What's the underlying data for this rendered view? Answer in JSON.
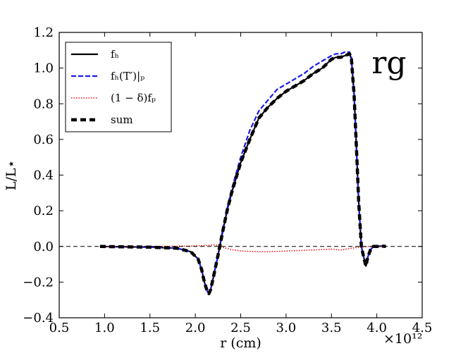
{
  "chart_data": {
    "type": "line",
    "xlabel": "r (cm)",
    "ylabel": "L/L⋆",
    "x_scale_label": "×10¹²",
    "panel_label": "rg",
    "xlim": [
      0.5,
      4.5
    ],
    "ylim": [
      -0.4,
      1.2
    ],
    "x_ticks": [
      0.5,
      1.0,
      1.5,
      2.0,
      2.5,
      3.0,
      3.5,
      4.0,
      4.5
    ],
    "y_ticks": [
      -0.4,
      -0.2,
      0.0,
      0.2,
      0.4,
      0.6,
      0.8,
      1.0,
      1.2
    ],
    "x_tick_labels": [
      "0.5",
      "1.0",
      "1.5",
      "2.0",
      "2.5",
      "3.0",
      "3.5",
      "4.0",
      "4.5"
    ],
    "y_tick_labels": [
      "−0.4",
      "−0.2",
      "0.0",
      "0.2",
      "0.4",
      "0.6",
      "0.8",
      "1.0",
      "1.2"
    ],
    "grid": false,
    "legend_position": "top-left",
    "reference_line": {
      "y": 0.0,
      "style": "dashed",
      "color": "#000000"
    },
    "series": [
      {
        "name": "f_h",
        "legend": "fₕ",
        "color": "#000000",
        "style": "solid",
        "x": [
          0.95,
          1.2,
          1.5,
          1.8,
          1.95,
          2.03,
          2.07,
          2.1,
          2.13,
          2.15,
          2.17,
          2.2,
          2.25,
          2.3,
          2.35,
          2.4,
          2.5,
          2.6,
          2.7,
          2.8,
          2.9,
          3.0,
          3.1,
          3.2,
          3.3,
          3.4,
          3.5,
          3.55,
          3.6,
          3.65,
          3.7,
          3.72,
          3.75,
          3.78,
          3.8,
          3.83,
          3.86,
          3.88,
          3.9,
          3.93,
          3.96,
          4.0,
          4.05,
          4.1
        ],
        "y": [
          0.0,
          -0.002,
          -0.004,
          -0.01,
          -0.03,
          -0.07,
          -0.13,
          -0.2,
          -0.25,
          -0.265,
          -0.24,
          -0.17,
          -0.05,
          0.08,
          0.2,
          0.3,
          0.47,
          0.6,
          0.72,
          0.78,
          0.83,
          0.87,
          0.9,
          0.93,
          0.97,
          1.0,
          1.05,
          1.06,
          1.06,
          1.07,
          1.08,
          1.05,
          0.85,
          0.5,
          0.25,
          0.0,
          -0.07,
          -0.11,
          -0.06,
          -0.02,
          0.0,
          0.0,
          0.002,
          0.0
        ]
      },
      {
        "name": "f_h(T')|_p",
        "legend": "fₕ(T′)|ₚ",
        "color": "#1a1aee",
        "style": "dashed",
        "x": [
          0.95,
          1.2,
          1.5,
          1.8,
          1.95,
          2.03,
          2.07,
          2.1,
          2.13,
          2.15,
          2.17,
          2.2,
          2.25,
          2.3,
          2.35,
          2.4,
          2.5,
          2.6,
          2.7,
          2.8,
          2.9,
          3.0,
          3.1,
          3.2,
          3.3,
          3.4,
          3.5,
          3.55,
          3.6,
          3.65,
          3.7,
          3.72,
          3.75,
          3.78,
          3.8,
          3.83,
          3.86,
          3.88,
          3.9,
          3.93,
          3.96,
          4.0,
          4.05,
          4.1
        ],
        "y": [
          0.0,
          -0.002,
          -0.004,
          -0.01,
          -0.03,
          -0.07,
          -0.13,
          -0.2,
          -0.25,
          -0.265,
          -0.24,
          -0.17,
          -0.05,
          0.09,
          0.21,
          0.32,
          0.5,
          0.65,
          0.76,
          0.82,
          0.88,
          0.91,
          0.94,
          0.97,
          1.01,
          1.04,
          1.07,
          1.08,
          1.08,
          1.09,
          1.09,
          1.06,
          0.86,
          0.5,
          0.25,
          0.0,
          -0.07,
          -0.11,
          -0.06,
          -0.02,
          0.0,
          0.0,
          0.002,
          0.0
        ]
      },
      {
        "name": "(1-δ)f_p",
        "legend": "(1 − δ)fₚ",
        "color": "#ee1111",
        "style": "dotted",
        "x": [
          0.95,
          1.2,
          1.5,
          1.8,
          2.0,
          2.1,
          2.2,
          2.25,
          2.3,
          2.4,
          2.5,
          2.6,
          2.7,
          2.8,
          2.9,
          3.0,
          3.1,
          3.2,
          3.3,
          3.4,
          3.5,
          3.6,
          3.7,
          3.75,
          3.8,
          3.85,
          3.9,
          4.0,
          4.1
        ],
        "y": [
          0.0,
          0.0,
          0.0,
          0.001,
          0.003,
          0.005,
          0.008,
          0.006,
          -0.005,
          -0.018,
          -0.025,
          -0.028,
          -0.03,
          -0.03,
          -0.028,
          -0.026,
          -0.024,
          -0.022,
          -0.02,
          -0.017,
          -0.015,
          -0.02,
          -0.012,
          -0.008,
          -0.005,
          -0.003,
          0.0,
          0.0,
          0.0
        ]
      },
      {
        "name": "sum",
        "legend": "sum",
        "color": "#000000",
        "style": "thick-dashed",
        "x": [
          0.95,
          1.2,
          1.5,
          1.8,
          1.95,
          2.03,
          2.07,
          2.1,
          2.13,
          2.15,
          2.17,
          2.2,
          2.25,
          2.3,
          2.35,
          2.4,
          2.5,
          2.6,
          2.7,
          2.8,
          2.9,
          3.0,
          3.1,
          3.2,
          3.3,
          3.4,
          3.5,
          3.55,
          3.6,
          3.65,
          3.7,
          3.72,
          3.75,
          3.78,
          3.8,
          3.83,
          3.86,
          3.88,
          3.9,
          3.93,
          3.96,
          4.0,
          4.05,
          4.1
        ],
        "y": [
          0.0,
          -0.002,
          -0.004,
          -0.01,
          -0.03,
          -0.07,
          -0.13,
          -0.2,
          -0.25,
          -0.265,
          -0.24,
          -0.17,
          -0.05,
          0.08,
          0.2,
          0.3,
          0.47,
          0.6,
          0.72,
          0.78,
          0.83,
          0.87,
          0.9,
          0.93,
          0.97,
          1.0,
          1.05,
          1.06,
          1.06,
          1.07,
          1.08,
          1.05,
          0.85,
          0.5,
          0.25,
          0.0,
          -0.07,
          -0.11,
          -0.06,
          -0.02,
          0.0,
          0.0,
          0.002,
          0.0
        ]
      }
    ]
  }
}
